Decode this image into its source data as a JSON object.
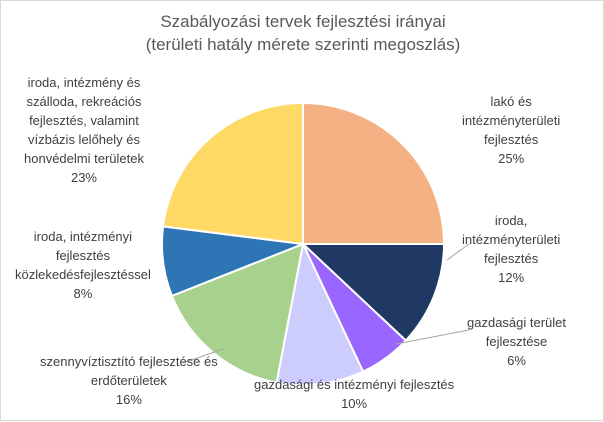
{
  "chart_data": {
    "type": "pie",
    "title": "Szabályozási tervek fejlesztési irányai",
    "subtitle": "(területi hatály mérete szerinti megoszlás)",
    "slices": [
      {
        "label": [
          "lakó és",
          "intézményterületi",
          "fejlesztés"
        ],
        "value": 25,
        "value_label": "25%",
        "color": "#f4b183"
      },
      {
        "label": [
          "iroda,",
          "intézményterületi",
          "fejlesztés"
        ],
        "value": 12,
        "value_label": "12%",
        "color": "#203864"
      },
      {
        "label": [
          "gazdasági terület",
          "fejlesztése"
        ],
        "value": 6,
        "value_label": "6%",
        "color": "#9966ff"
      },
      {
        "label": [
          "gazdasági és intézményi fejlesztés"
        ],
        "value": 10,
        "value_label": "10%",
        "color": "#ccccff"
      },
      {
        "label": [
          "szennyvíztisztító fejlesztése és",
          "erdőterületek"
        ],
        "value": 16,
        "value_label": "16%",
        "color": "#a9d18e"
      },
      {
        "label": [
          "iroda, intézményi",
          "fejlesztés",
          "közlekedésfejlesztéssel"
        ],
        "value": 8,
        "value_label": "8%",
        "color": "#2e75b6"
      },
      {
        "label": [
          "iroda, intézmény és",
          "szálloda, rekreációs",
          "fejlesztés, valamint",
          "vízbázis lelőhely és",
          "honvédelmi területek"
        ],
        "value": 23,
        "value_label": "23%",
        "color": "#ffd966"
      }
    ],
    "start_angle": "12 o'clock",
    "direction": "clockwise",
    "legend": "none",
    "data_labels": "outside with leader lines"
  }
}
